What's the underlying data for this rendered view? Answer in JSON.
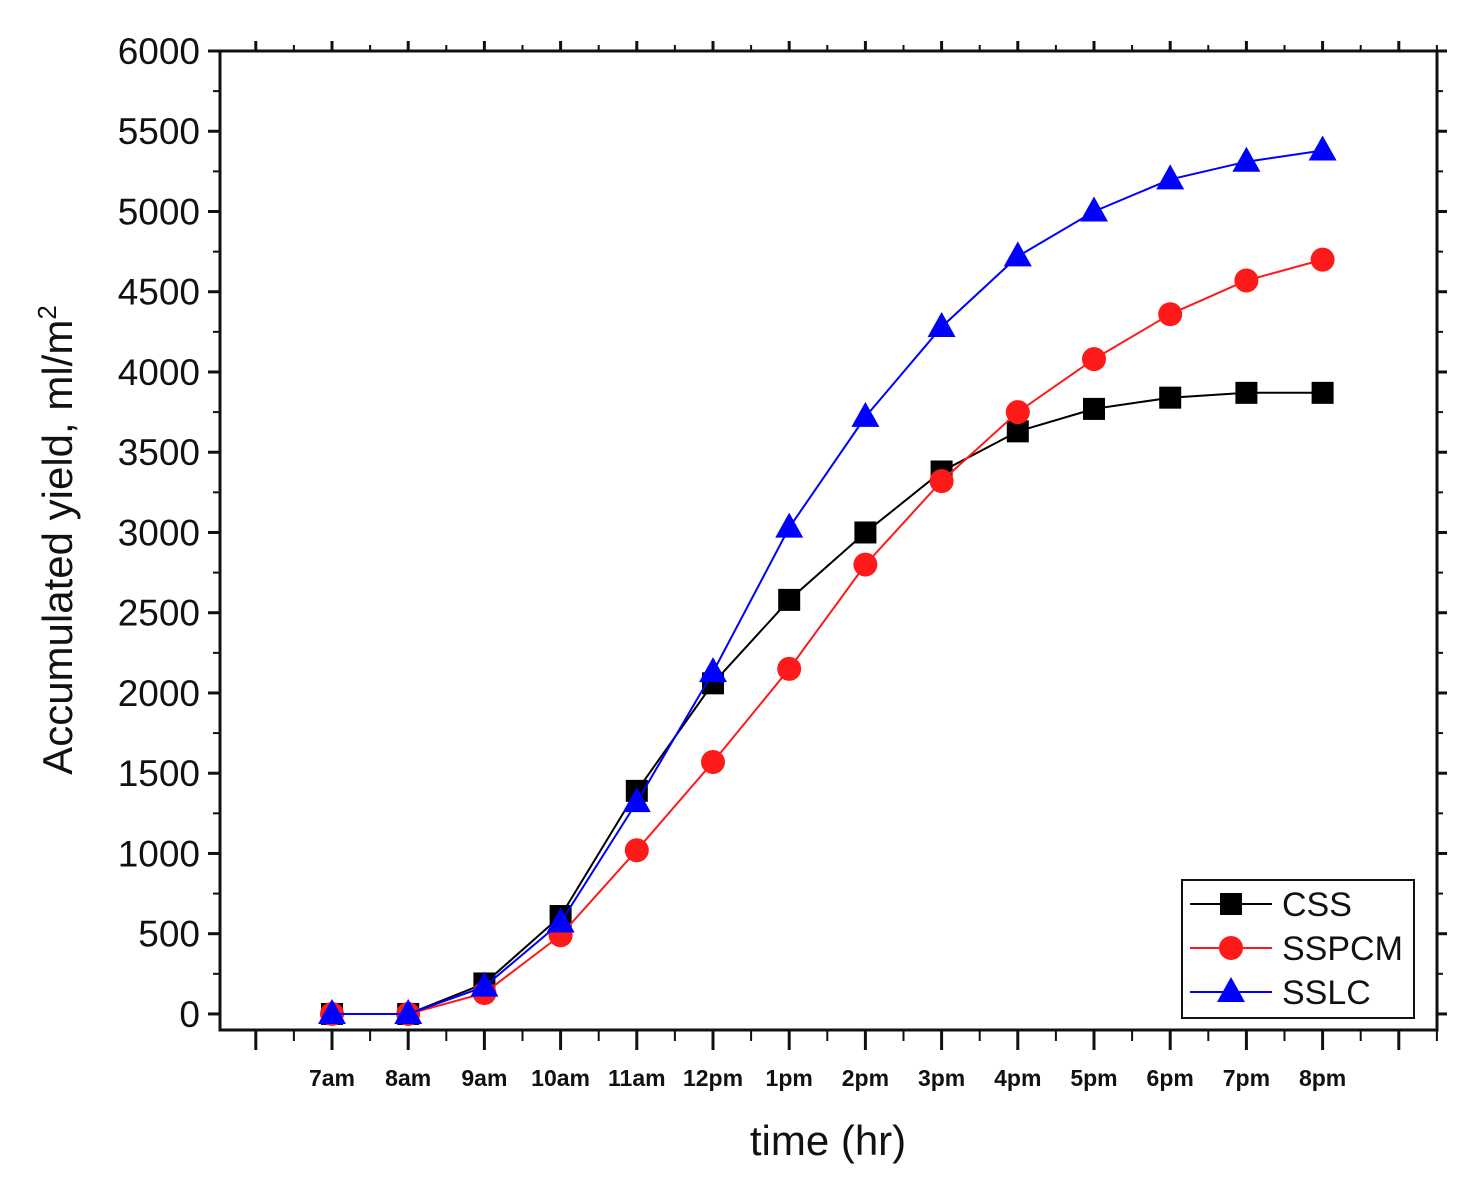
{
  "chart_data": {
    "type": "line",
    "title": "",
    "xlabel": "time (hr)",
    "ylabel": "Accumulated yield, ml/m",
    "ylabel_superscript": "2",
    "categories": [
      "7am",
      "8am",
      "9am",
      "10am",
      "11am",
      "12pm",
      "1pm",
      "2pm",
      "3pm",
      "4pm",
      "5pm",
      "6pm",
      "7pm",
      "8pm"
    ],
    "ylim": [
      -100,
      6000
    ],
    "yticks": [
      0,
      500,
      1000,
      1500,
      2000,
      2500,
      3000,
      3500,
      4000,
      4500,
      5000,
      5500,
      6000
    ],
    "ytick_labels": [
      "0",
      "500",
      "1000",
      "1500",
      "2000",
      "2500",
      "3000",
      "3500",
      "4000",
      "4500",
      "5000",
      "5500",
      "6000"
    ],
    "grid": false,
    "legend_position": "bottom-right",
    "series": [
      {
        "name": "CSS",
        "color": "#000000",
        "marker": "square",
        "values": [
          0,
          0,
          190,
          610,
          1390,
          2060,
          2580,
          3000,
          3380,
          3630,
          3770,
          3840,
          3870,
          3870
        ]
      },
      {
        "name": "SSPCM",
        "color": "#ff1a1a",
        "marker": "circle",
        "values": [
          0,
          0,
          130,
          490,
          1020,
          1570,
          2150,
          2800,
          3320,
          3750,
          4080,
          4360,
          4570,
          4700
        ]
      },
      {
        "name": "SSLC",
        "color": "#0000ff",
        "marker": "triangle",
        "values": [
          0,
          0,
          170,
          570,
          1320,
          2130,
          3030,
          3720,
          4280,
          4720,
          5000,
          5200,
          5310,
          5380
        ]
      }
    ]
  }
}
